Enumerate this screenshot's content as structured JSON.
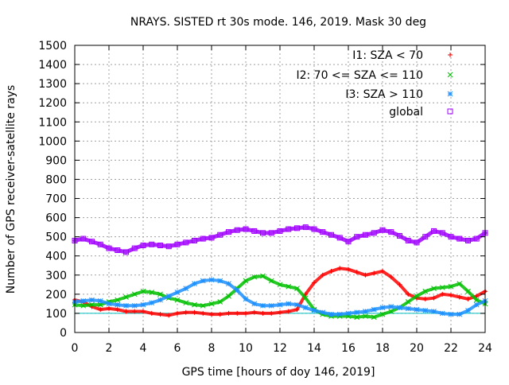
{
  "chart_data": {
    "type": "scatter",
    "title": "NRAYS. SISTED rt 30s mode. 146, 2019. Mask 30 deg",
    "xlabel": "GPS time [hours of doy 146, 2019]",
    "ylabel": "Number of GPS receiver-satellite rays",
    "xlim": [
      0,
      24
    ],
    "ylim": [
      0,
      1500
    ],
    "xticks": [
      0,
      2,
      4,
      6,
      8,
      10,
      12,
      14,
      16,
      18,
      20,
      22,
      24
    ],
    "yticks": [
      0,
      100,
      200,
      300,
      400,
      500,
      600,
      700,
      800,
      900,
      1000,
      1100,
      1200,
      1300,
      1400,
      1500
    ],
    "grid": true,
    "legend_position": "top-right",
    "reference_line": {
      "y": 100,
      "color": "#00bfbf"
    },
    "series": [
      {
        "name": "I1: SZA < 70",
        "marker": "+",
        "color": "#ff0000",
        "x": [
          0,
          0.5,
          1,
          1.5,
          2,
          2.5,
          3,
          3.5,
          4,
          4.5,
          5,
          5.5,
          6,
          6.5,
          7,
          7.5,
          8,
          8.5,
          9,
          9.5,
          10,
          10.5,
          11,
          11.5,
          12,
          12.5,
          13,
          13.5,
          14,
          14.5,
          15,
          15.5,
          16,
          16.5,
          17,
          17.5,
          18,
          18.5,
          19,
          19.5,
          20,
          20.5,
          21,
          21.5,
          22,
          22.5,
          23,
          23.5,
          24
        ],
        "values": [
          170,
          160,
          135,
          120,
          125,
          120,
          110,
          110,
          110,
          100,
          95,
          90,
          100,
          105,
          105,
          100,
          95,
          95,
          100,
          100,
          100,
          105,
          100,
          100,
          105,
          110,
          120,
          200,
          260,
          300,
          320,
          335,
          330,
          315,
          300,
          310,
          320,
          290,
          250,
          200,
          180,
          175,
          180,
          200,
          195,
          185,
          175,
          190,
          215
        ]
      },
      {
        "name": "I2: 70 <= SZA <= 110",
        "marker": "x",
        "color": "#00c000",
        "x": [
          0,
          0.5,
          1,
          1.5,
          2,
          2.5,
          3,
          3.5,
          4,
          4.5,
          5,
          5.5,
          6,
          6.5,
          7,
          7.5,
          8,
          8.5,
          9,
          9.5,
          10,
          10.5,
          11,
          11.5,
          12,
          12.5,
          13,
          13.5,
          14,
          14.5,
          15,
          15.5,
          16,
          16.5,
          17,
          17.5,
          18,
          18.5,
          19,
          19.5,
          20,
          20.5,
          21,
          21.5,
          22,
          22.5,
          23,
          23.5,
          24
        ],
        "values": [
          145,
          140,
          145,
          145,
          160,
          170,
          185,
          200,
          215,
          210,
          200,
          180,
          170,
          155,
          145,
          140,
          150,
          160,
          190,
          230,
          270,
          290,
          295,
          270,
          250,
          240,
          230,
          180,
          120,
          95,
          85,
          85,
          85,
          80,
          85,
          80,
          95,
          110,
          130,
          160,
          190,
          215,
          230,
          235,
          240,
          255,
          215,
          170,
          150
        ]
      },
      {
        "name": "I3: SZA > 110",
        "marker": "*",
        "color": "#1e90ff",
        "x": [
          0,
          0.5,
          1,
          1.5,
          2,
          2.5,
          3,
          3.5,
          4,
          4.5,
          5,
          5.5,
          6,
          6.5,
          7,
          7.5,
          8,
          8.5,
          9,
          9.5,
          10,
          10.5,
          11,
          11.5,
          12,
          12.5,
          13,
          13.5,
          14,
          14.5,
          15,
          15.5,
          16,
          16.5,
          17,
          17.5,
          18,
          18.5,
          19,
          19.5,
          20,
          20.5,
          21,
          21.5,
          22,
          22.5,
          23,
          23.5,
          24
        ],
        "values": [
          160,
          165,
          170,
          165,
          150,
          145,
          140,
          140,
          145,
          155,
          170,
          190,
          210,
          230,
          255,
          270,
          275,
          270,
          255,
          220,
          175,
          150,
          140,
          140,
          145,
          150,
          145,
          130,
          115,
          105,
          95,
          95,
          100,
          105,
          110,
          120,
          130,
          135,
          130,
          125,
          120,
          115,
          110,
          100,
          95,
          95,
          115,
          145,
          165
        ]
      },
      {
        "name": "global",
        "marker": "square",
        "color": "#a000ff",
        "x": [
          0,
          0.5,
          1,
          1.5,
          2,
          2.5,
          3,
          3.5,
          4,
          4.5,
          5,
          5.5,
          6,
          6.5,
          7,
          7.5,
          8,
          8.5,
          9,
          9.5,
          10,
          10.5,
          11,
          11.5,
          12,
          12.5,
          13,
          13.5,
          14,
          14.5,
          15,
          15.5,
          16,
          16.5,
          17,
          17.5,
          18,
          18.5,
          19,
          19.5,
          20,
          20.5,
          21,
          21.5,
          22,
          22.5,
          23,
          23.5,
          24
        ],
        "values": [
          480,
          490,
          475,
          460,
          440,
          430,
          420,
          440,
          455,
          460,
          455,
          450,
          460,
          470,
          480,
          490,
          495,
          510,
          525,
          535,
          540,
          530,
          520,
          520,
          530,
          540,
          545,
          550,
          540,
          525,
          510,
          495,
          475,
          500,
          510,
          520,
          535,
          525,
          505,
          480,
          470,
          500,
          530,
          520,
          500,
          490,
          480,
          490,
          520
        ]
      }
    ]
  }
}
